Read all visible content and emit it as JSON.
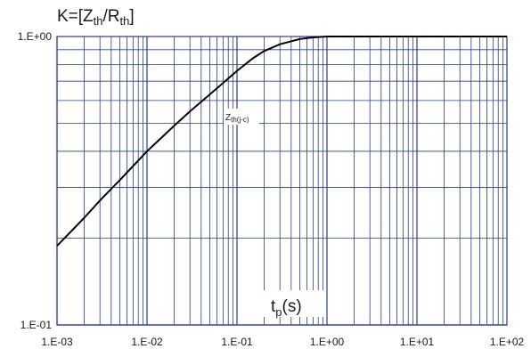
{
  "chart_data": {
    "type": "line",
    "ylabel": {
      "prefix": "K=[Z",
      "sub1": "th",
      "mid": "/R",
      "sub2": "th",
      "suffix": "]"
    },
    "xlabel": {
      "main": "t",
      "sub": "p",
      "suffix": "(s)"
    },
    "x_scale": "log",
    "y_scale": "log",
    "xlim": [
      0.001,
      100
    ],
    "ylim": [
      0.1,
      1
    ],
    "x_tick_labels": [
      "1.E-03",
      "1.E-02",
      "1.E-01",
      "1.E+00",
      "1.E+01",
      "1.E+02"
    ],
    "y_tick_labels": [
      "1.E-01",
      "1.E+00"
    ],
    "grid": true,
    "grid_color": "#2a3f7a",
    "line_color": "#000000",
    "series": [
      {
        "name": "Z",
        "name_sub": "th(j-c)",
        "x": [
          0.001,
          0.002,
          0.003,
          0.005,
          0.01,
          0.02,
          0.03,
          0.05,
          0.1,
          0.15,
          0.2,
          0.3,
          0.5,
          0.7,
          1,
          2,
          5,
          10,
          100
        ],
        "y": [
          0.188,
          0.235,
          0.27,
          0.318,
          0.4,
          0.49,
          0.55,
          0.63,
          0.76,
          0.84,
          0.89,
          0.94,
          0.98,
          0.993,
          1.0,
          1.0,
          1.0,
          1.0,
          1.0
        ]
      }
    ]
  }
}
